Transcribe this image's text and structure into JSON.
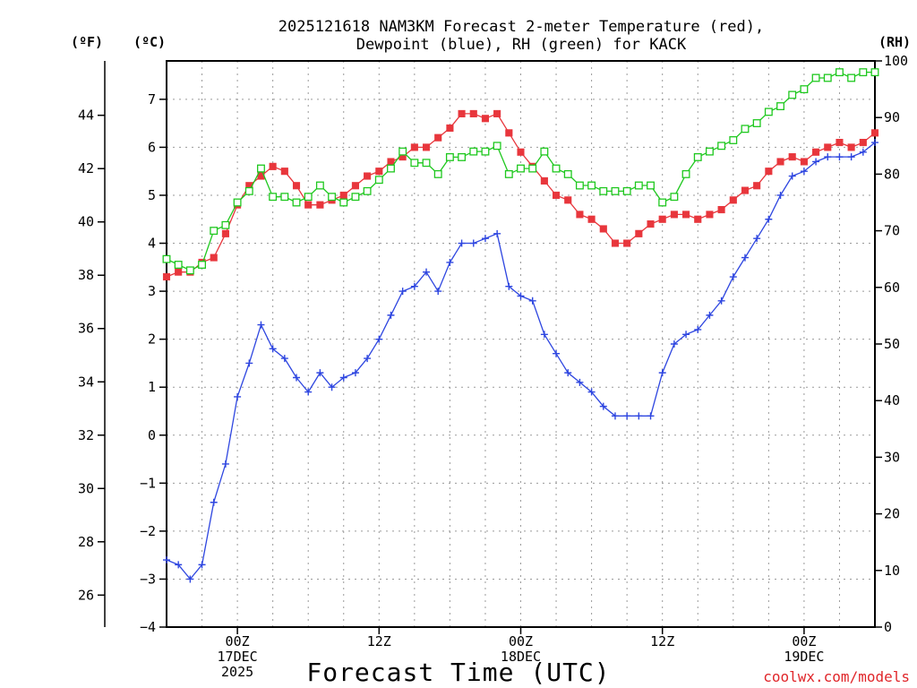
{
  "chart_data": {
    "type": "line",
    "title_lines": [
      "2025121618 NAM3KM Forecast 2-meter Temperature (red),",
      "Dewpoint (blue), RH (green) for KACK"
    ],
    "xlabel": "Forecast Time (UTC)",
    "credit": "coolwx.com/models",
    "unit_labels": {
      "fahrenheit": "(ºF)",
      "celsius": "(ºC)",
      "rh": "(RH)"
    },
    "x_start_hour": 18,
    "x_end_hour": 78,
    "x_ticks": [
      {
        "hour": 24,
        "lines": [
          "00Z",
          "17DEC",
          "2025"
        ]
      },
      {
        "hour": 36,
        "lines": [
          "12Z"
        ]
      },
      {
        "hour": 48,
        "lines": [
          "00Z",
          "18DEC"
        ]
      },
      {
        "hour": 60,
        "lines": [
          "12Z"
        ]
      },
      {
        "hour": 72,
        "lines": [
          "00Z",
          "19DEC"
        ]
      }
    ],
    "y_celsius": {
      "min": -4,
      "max": 7.8,
      "ticks": [
        -4,
        -3,
        -2,
        -1,
        0,
        1,
        2,
        3,
        4,
        5,
        6,
        7
      ]
    },
    "y_fahrenheit": {
      "ticks": [
        26,
        28,
        30,
        32,
        34,
        36,
        38,
        40,
        42,
        44
      ]
    },
    "y_rh": {
      "min": 0,
      "max": 100,
      "ticks": [
        0,
        10,
        20,
        30,
        40,
        50,
        60,
        70,
        80,
        90,
        100
      ]
    },
    "series": [
      {
        "name": "2-meter Temperature",
        "color": "#e8363c",
        "marker": "filled-square",
        "axis": "celsius",
        "values": [
          3.3,
          3.4,
          3.4,
          3.6,
          3.7,
          4.2,
          4.8,
          5.2,
          5.4,
          5.6,
          5.5,
          5.2,
          4.8,
          4.8,
          4.9,
          5.0,
          5.2,
          5.4,
          5.5,
          5.7,
          5.8,
          6.0,
          6.0,
          6.2,
          6.4,
          6.7,
          6.7,
          6.6,
          6.7,
          6.3,
          5.9,
          5.6,
          5.3,
          5.0,
          4.9,
          4.6,
          4.5,
          4.3,
          4.0,
          4.0,
          4.2,
          4.4,
          4.5,
          4.6,
          4.6,
          4.5,
          4.6,
          4.7,
          4.9,
          5.1,
          5.2,
          5.5,
          5.7,
          5.8,
          5.7,
          5.9,
          6.0,
          6.1,
          6.0,
          6.1,
          6.3
        ]
      },
      {
        "name": "Dewpoint",
        "color": "#2e46e0",
        "marker": "plus",
        "axis": "celsius",
        "values": [
          -2.6,
          -2.7,
          -3.0,
          -2.7,
          -1.4,
          -0.6,
          0.8,
          1.5,
          2.3,
          1.8,
          1.6,
          1.2,
          0.9,
          1.3,
          1.0,
          1.2,
          1.3,
          1.6,
          2.0,
          2.5,
          3.0,
          3.1,
          3.4,
          3.0,
          3.6,
          4.0,
          4.0,
          4.1,
          4.2,
          3.1,
          2.9,
          2.8,
          2.1,
          1.7,
          1.3,
          1.1,
          0.9,
          0.6,
          0.4,
          0.4,
          0.4,
          0.4,
          1.3,
          1.9,
          2.1,
          2.2,
          2.5,
          2.8,
          3.3,
          3.7,
          4.1,
          4.5,
          5.0,
          5.4,
          5.5,
          5.7,
          5.8,
          5.8,
          5.8,
          5.9,
          6.1
        ]
      },
      {
        "name": "RH",
        "color": "#1ec81e",
        "marker": "open-square",
        "axis": "rh",
        "values": [
          65,
          64,
          63,
          64,
          70,
          71,
          75,
          77,
          81,
          76,
          76,
          75,
          76,
          78,
          76,
          75,
          76,
          77,
          79,
          81,
          84,
          82,
          82,
          80,
          83,
          83,
          84,
          84,
          85,
          80,
          81,
          81,
          84,
          81,
          80,
          78,
          78,
          77,
          77,
          77,
          78,
          78,
          75,
          76,
          80,
          83,
          84,
          85,
          86,
          88,
          89,
          91,
          92,
          94,
          95,
          97,
          97,
          98,
          97,
          98,
          98
        ]
      }
    ]
  }
}
